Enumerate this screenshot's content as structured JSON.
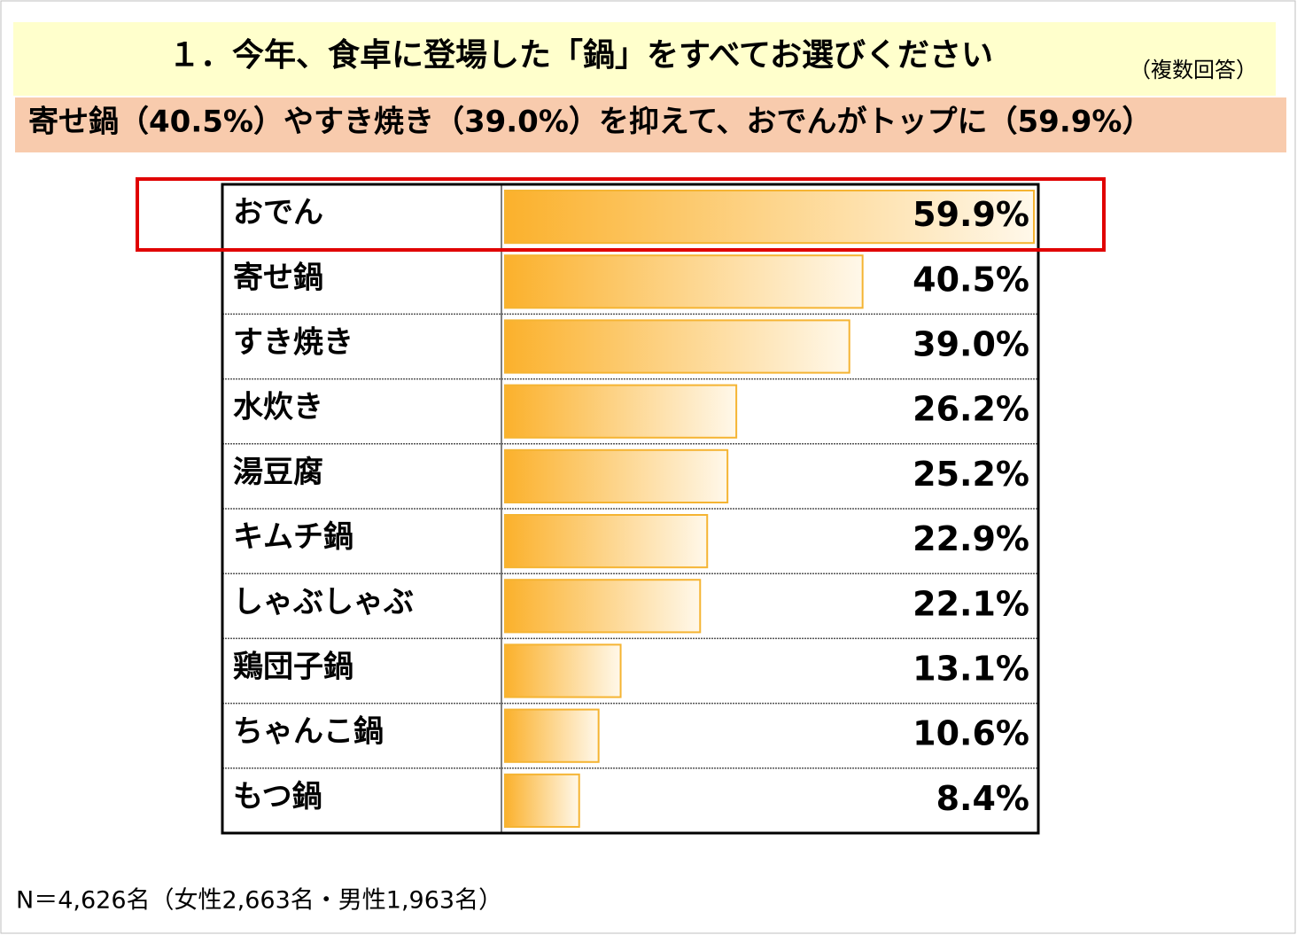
{
  "chart_data": {
    "type": "bar",
    "title": "１．今年、食卓に登場した「鍋」をすべてお選びください",
    "title_note": "（複数回答）",
    "subtitle": "寄せ鍋（40.5%）やすき焼き（39.0%）を抑えて、おでんがトップに（59.9%）",
    "categories": [
      "おでん",
      "寄せ鍋",
      "すき焼き",
      "水炊き",
      "湯豆腐",
      "キムチ鍋",
      "しゃぶしゃぶ",
      "鶏団子鍋",
      "ちゃんこ鍋",
      "もつ鍋"
    ],
    "values": [
      59.9,
      40.5,
      39.0,
      26.2,
      25.2,
      22.9,
      22.1,
      13.1,
      10.6,
      8.4
    ],
    "value_labels": [
      "59.9%",
      "40.5%",
      "39.0%",
      "26.2%",
      "25.2%",
      "22.9%",
      "22.1%",
      "13.1%",
      "10.6%",
      "8.4%"
    ],
    "color": "#fbb12c",
    "note": "N＝4,626名（女性2,663名・男性1,963名）"
  }
}
